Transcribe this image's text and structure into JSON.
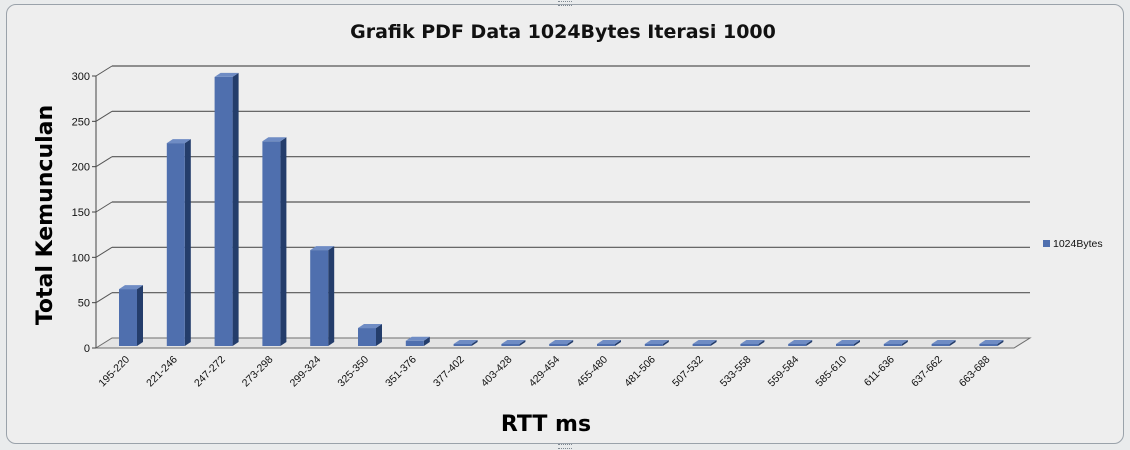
{
  "chart_data": {
    "type": "bar",
    "title": "Grafik PDF Data 1024Bytes Iterasi 1000",
    "xlabel": "RTT ms",
    "ylabel": "Total Kemunculan",
    "ylim": [
      0,
      300
    ],
    "yticks": [
      "0",
      "50",
      "100",
      "150",
      "200",
      "250",
      "300"
    ],
    "categories": [
      "195-220",
      "221-246",
      "247-272",
      "273-298",
      "299-324",
      "325-350",
      "351-376",
      "377-402",
      "403-428",
      "429-454",
      "455-480",
      "481-506",
      "507-532",
      "533-558",
      "559-584",
      "585-610",
      "611-636",
      "637-662",
      "663-688"
    ],
    "series": [
      {
        "name": "1024Bytes",
        "values": [
          65,
          226,
          299,
          228,
          108,
          22,
          8,
          3,
          1,
          0,
          0,
          0,
          0,
          0,
          0,
          0,
          0,
          1,
          1
        ]
      }
    ],
    "grid": true,
    "legend": "right",
    "colors": {
      "bar": "#4f6fae",
      "bar_side": "#243d6b",
      "bar_top": "#6f8cc4"
    }
  }
}
